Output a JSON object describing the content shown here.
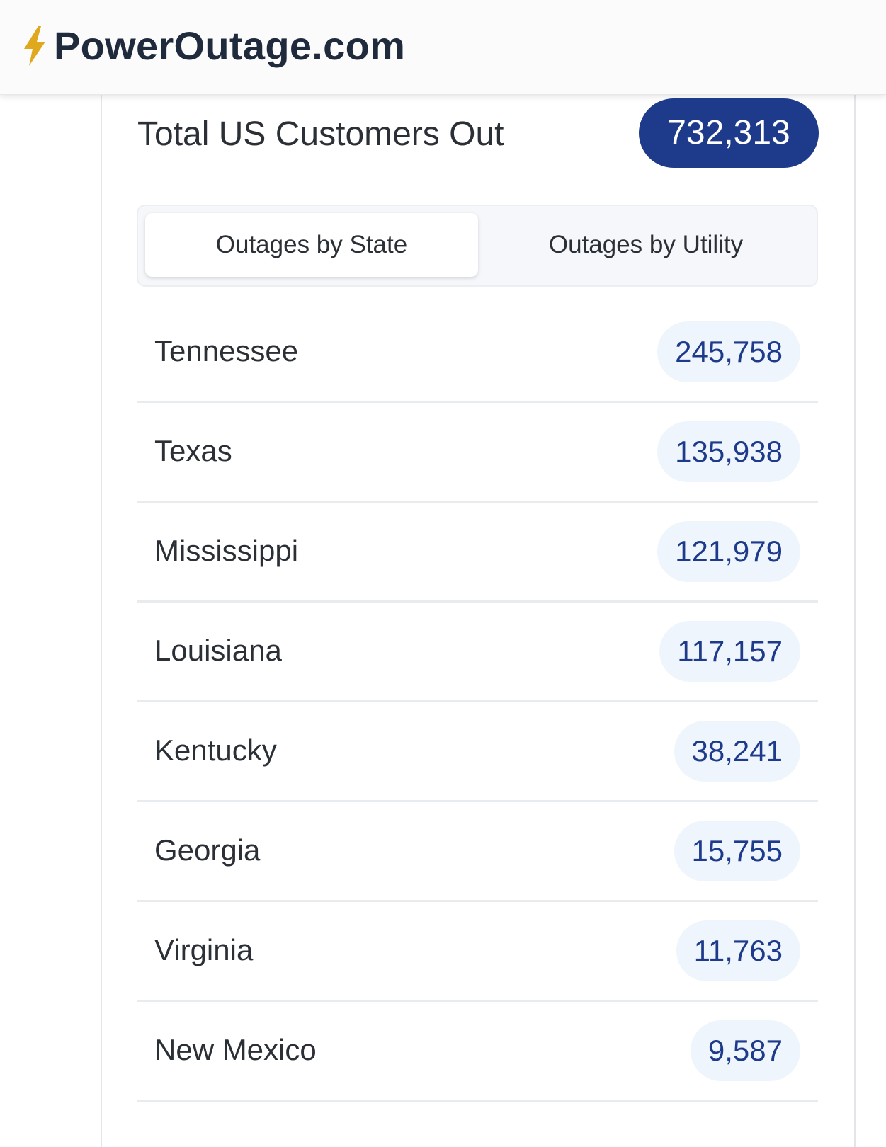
{
  "header": {
    "logo_icon": "lightning-bolt-icon",
    "title": "PowerOutage.com",
    "brand_colors": {
      "bolt": "#e0a91d",
      "title": "#1f2a3c"
    }
  },
  "summary": {
    "label": "Total US Customers Out",
    "total": "732,313",
    "badge_color": "#1e3a8a"
  },
  "tabs": [
    {
      "label": "Outages by State",
      "active": true
    },
    {
      "label": "Outages by Utility",
      "active": false
    }
  ],
  "states": [
    {
      "name": "Tennessee",
      "count": "245,758"
    },
    {
      "name": "Texas",
      "count": "135,938"
    },
    {
      "name": "Mississippi",
      "count": "121,979"
    },
    {
      "name": "Louisiana",
      "count": "117,157"
    },
    {
      "name": "Kentucky",
      "count": "38,241"
    },
    {
      "name": "Georgia",
      "count": "15,755"
    },
    {
      "name": "Virginia",
      "count": "11,763"
    },
    {
      "name": "New Mexico",
      "count": "9,587"
    }
  ],
  "colors": {
    "pill_background": "#eef5fc",
    "pill_text": "#1e3a8a"
  }
}
